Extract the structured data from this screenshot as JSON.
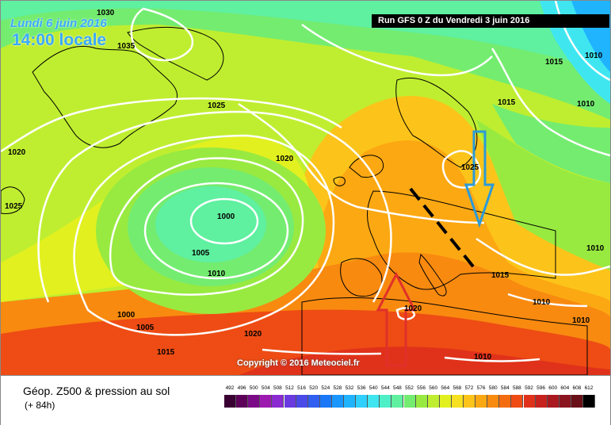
{
  "header": {
    "date_label": "Lundi 6 juin 2016",
    "time_label": "14:00 locale",
    "run_label": "Run GFS 0 Z du Vendredi 3 juin 2016"
  },
  "copyright": "Copyright © 2016 Meteociel.fr",
  "legend": {
    "parameter": "Géop. Z500 & pression au sol",
    "lead_time": "(+ 84h)"
  },
  "scale": {
    "ticks": [
      "492",
      "496",
      "500",
      "504",
      "508",
      "512",
      "516",
      "520",
      "524",
      "528",
      "532",
      "536",
      "540",
      "544",
      "548",
      "552",
      "556",
      "560",
      "564",
      "568",
      "572",
      "576",
      "580",
      "584",
      "588",
      "592",
      "596",
      "600",
      "604",
      "608",
      "612"
    ],
    "colors": [
      "#3a0033",
      "#5c005a",
      "#7a0a86",
      "#9c1ab0",
      "#8a2ad0",
      "#6a3ae0",
      "#4a4ae8",
      "#2f5ef0",
      "#1a78f8",
      "#1a96ff",
      "#20b4ff",
      "#2fd0ff",
      "#3fe6f0",
      "#4ff0c8",
      "#5ff0a0",
      "#74ec70",
      "#98ea40",
      "#bfee30",
      "#e2f020",
      "#f6e020",
      "#fcc41a",
      "#fca812",
      "#f88a10",
      "#f46c10",
      "#ee4c14",
      "#e0321a",
      "#c8221e",
      "#aa1820",
      "#8a1420",
      "#6a1018",
      "#000000"
    ]
  },
  "map": {
    "pressure_labels": [
      "1030",
      "1035",
      "1020",
      "1025",
      "1025",
      "1020",
      "1000",
      "1005",
      "1010",
      "1000",
      "1005",
      "1015",
      "1020",
      "1015",
      "1010",
      "1015",
      "1025",
      "1020",
      "1015",
      "1010",
      "1010",
      "1010",
      "1010",
      "1010"
    ],
    "arrows": [
      {
        "name": "red-arrow",
        "color": "#e0302a",
        "direction": "up"
      },
      {
        "name": "blue-arrow",
        "color": "#2a9ad8",
        "direction": "down"
      }
    ],
    "axis_line": {
      "color": "#000000",
      "style": "dashed"
    }
  }
}
